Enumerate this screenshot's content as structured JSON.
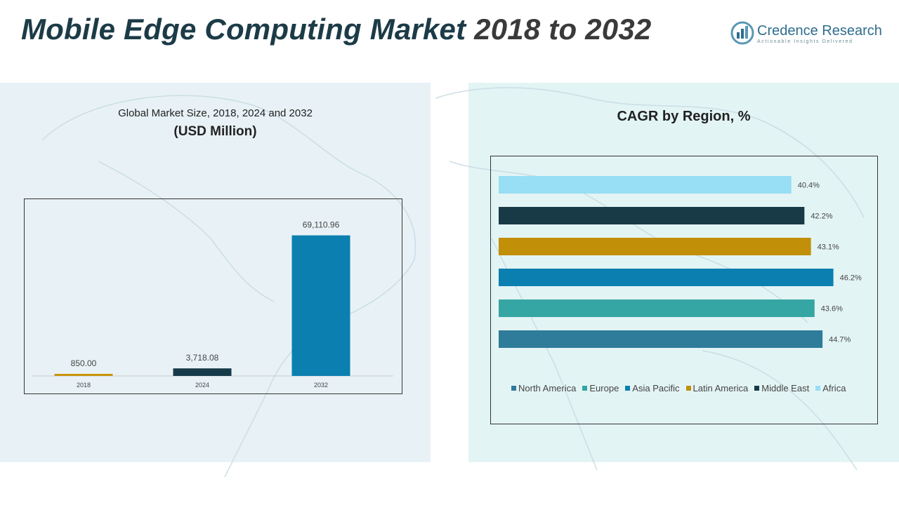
{
  "header": {
    "title_part1": "Mobile Edge Computing Market",
    "title_part2": "2018 to 2032"
  },
  "logo": {
    "name": "Credence Research",
    "tagline": "Actionable Insights Delivered"
  },
  "left_panel": {
    "subtitle": "Global Market Size, 2018, 2024 and 2032",
    "unit": "(USD Million)"
  },
  "right_panel": {
    "title": "CAGR by Region, %"
  },
  "chart_data": [
    {
      "type": "bar",
      "title": "Global Market Size, 2018, 2024 and 2032",
      "ylabel": "USD Million",
      "categories": [
        "2018",
        "2024",
        "2032"
      ],
      "values": [
        850.0,
        3718.08,
        69110.96
      ],
      "labels": [
        "850.00",
        "3,718.08",
        "69,110.96"
      ],
      "colors": [
        "#c9940a",
        "#173a4a",
        "#0b7fb0"
      ],
      "ylim": [
        0,
        80000
      ],
      "grid": false
    },
    {
      "type": "bar",
      "orientation": "horizontal",
      "title": "CAGR by Region, %",
      "categories": [
        "North America",
        "Europe",
        "Asia Pacific",
        "Latin America",
        "Middle East",
        "Africa"
      ],
      "values": [
        44.7,
        43.6,
        46.2,
        43.1,
        42.2,
        40.4
      ],
      "labels": [
        "44.7%",
        "43.6%",
        "46.2%",
        "43.1%",
        "42.2%",
        "40.4%"
      ],
      "colors": [
        "#2f7b9a",
        "#35a6a3",
        "#0b7fb0",
        "#c18f08",
        "#183a47",
        "#98def5"
      ],
      "xlim": [
        0,
        47.5
      ],
      "legend": "bottom",
      "grid": false
    }
  ]
}
